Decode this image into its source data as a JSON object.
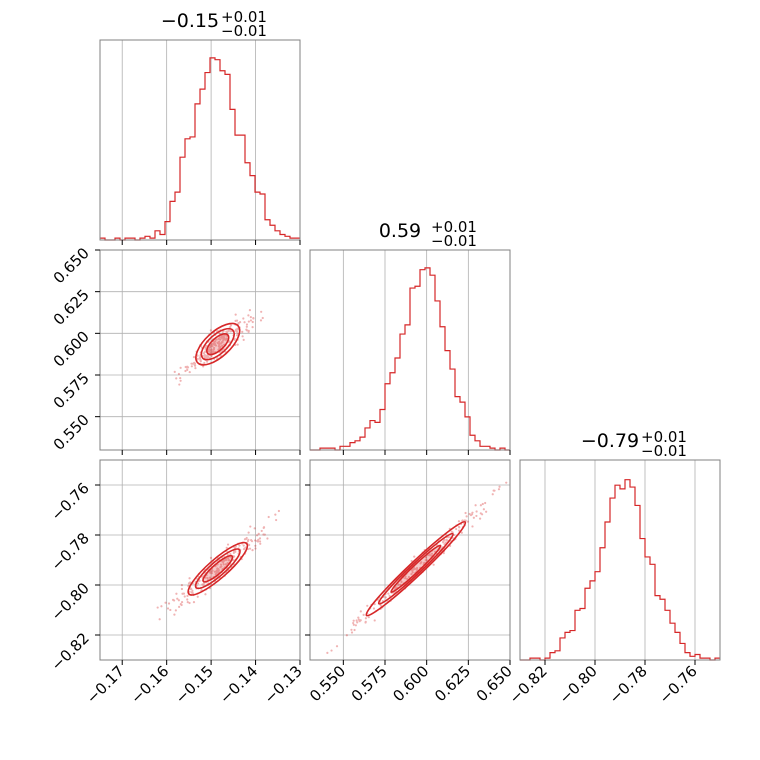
{
  "chart_data": {
    "type": "corner",
    "line_color": "#d62728",
    "parameters": [
      {
        "title_value": "−0.15",
        "title_plus": "+0.01",
        "title_minus": "−0.01",
        "range": [
          -0.175,
          -0.13
        ],
        "ticks": [
          -0.17,
          -0.16,
          -0.15,
          -0.14,
          -0.13
        ],
        "tick_labels": [
          "−0.17",
          "−0.16",
          "−0.15",
          "−0.14",
          "−0.13"
        ],
        "hist_heights": [
          0.01,
          0.0,
          0.0,
          0.01,
          0.0,
          0.01,
          0.01,
          0.0,
          0.01,
          0.02,
          0.01,
          0.05,
          0.03,
          0.1,
          0.21,
          0.26,
          0.45,
          0.55,
          0.56,
          0.74,
          0.82,
          0.91,
          0.99,
          0.98,
          0.92,
          0.9,
          0.71,
          0.57,
          0.57,
          0.42,
          0.35,
          0.26,
          0.25,
          0.11,
          0.08,
          0.05,
          0.03,
          0.02,
          0.01,
          0.01
        ]
      },
      {
        "title_value": "0.59",
        "title_plus": "+0.01",
        "title_minus": "−0.01",
        "range": [
          0.53,
          0.65
        ],
        "ticks": [
          0.55,
          0.575,
          0.6,
          0.625,
          0.65
        ],
        "tick_labels": [
          "0.550",
          "0.575",
          "0.600",
          "0.625",
          "0.650"
        ],
        "hist_heights": [
          0.0,
          0.0,
          0.01,
          0.01,
          0.01,
          0.0,
          0.02,
          0.02,
          0.04,
          0.05,
          0.07,
          0.12,
          0.16,
          0.15,
          0.22,
          0.36,
          0.42,
          0.5,
          0.63,
          0.68,
          0.88,
          0.89,
          0.98,
          0.99,
          0.95,
          0.81,
          0.67,
          0.54,
          0.44,
          0.29,
          0.26,
          0.18,
          0.08,
          0.05,
          0.02,
          0.02,
          0.01,
          0.0,
          0.01,
          0.0
        ]
      },
      {
        "title_value": "−0.79",
        "title_plus": "+0.01",
        "title_minus": "−0.01",
        "range": [
          -0.83,
          -0.75
        ],
        "ticks": [
          -0.82,
          -0.8,
          -0.78,
          -0.76
        ],
        "tick_labels": [
          "−0.82",
          "−0.80",
          "−0.78",
          "−0.76"
        ],
        "ticks_2d_y": [
          -0.76,
          -0.78,
          -0.8,
          -0.82
        ],
        "hist_heights": [
          0.0,
          0.0,
          0.01,
          0.01,
          0.0,
          0.01,
          0.04,
          0.05,
          0.12,
          0.15,
          0.16,
          0.27,
          0.28,
          0.39,
          0.43,
          0.48,
          0.61,
          0.75,
          0.88,
          0.95,
          0.93,
          0.98,
          0.94,
          0.84,
          0.66,
          0.56,
          0.52,
          0.35,
          0.33,
          0.27,
          0.2,
          0.15,
          0.09,
          0.04,
          0.02,
          0.03,
          0.01,
          0.01,
          0.0,
          0.01
        ]
      }
    ],
    "contours": [
      {
        "row": 1,
        "col": 0,
        "center": [
          -0.1485,
          0.5935
        ],
        "slope": 2.45,
        "length": 0.024,
        "width": 0.0025
      },
      {
        "row": 2,
        "col": 0,
        "center": [
          -0.1485,
          -0.7935
        ],
        "slope": 1.55,
        "length": 0.024,
        "width": 0.002
      },
      {
        "row": 2,
        "col": 1,
        "center": [
          0.5935,
          -0.7935
        ],
        "slope": 0.63,
        "length": 0.07,
        "width": 0.0025
      }
    ]
  }
}
